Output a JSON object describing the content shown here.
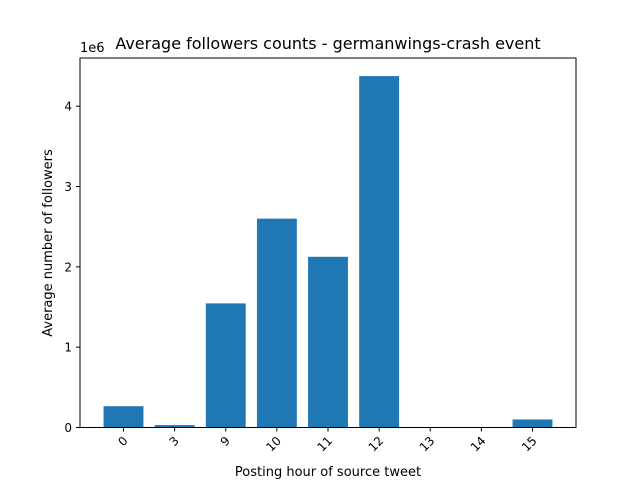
{
  "chart_data": {
    "type": "bar",
    "title": "Average followers counts - germanwings-crash event",
    "xlabel": "Posting hour of source tweet",
    "ylabel": "Average number of followers",
    "y_scale_note": "1e6",
    "categories": [
      "0",
      "3",
      "9",
      "10",
      "11",
      "12",
      "13",
      "14",
      "15"
    ],
    "values": [
      265000,
      30000,
      1545000,
      2600000,
      2125000,
      4375000,
      0,
      0,
      100000
    ],
    "ylim": [
      0,
      4600000
    ],
    "yticks": [
      0,
      1000000,
      2000000,
      3000000,
      4000000
    ],
    "ytick_labels": [
      "0",
      "1",
      "2",
      "3",
      "4"
    ],
    "bar_color": "#1f77b4",
    "grid": false,
    "legend": "none"
  }
}
